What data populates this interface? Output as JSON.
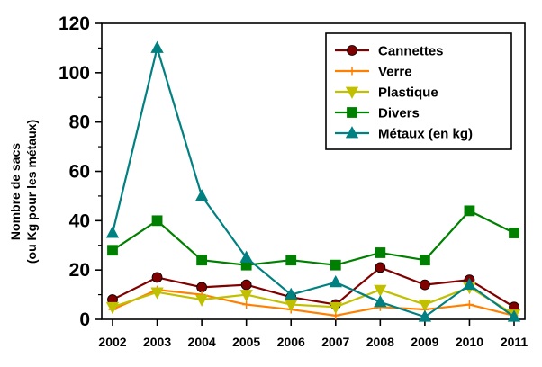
{
  "chart_data": {
    "type": "line",
    "title": "",
    "xlabel": "",
    "ylabel": [
      "Nombre de sacs",
      "(ou Kg pour les métaux)"
    ],
    "categories": [
      "2002",
      "2003",
      "2004",
      "2005",
      "2006",
      "2007",
      "2008",
      "2009",
      "2010",
      "2011"
    ],
    "ylim": [
      0,
      120
    ],
    "yticks": [
      0,
      20,
      40,
      60,
      80,
      100,
      120
    ],
    "grid": false,
    "legend_position": "top-right",
    "series": [
      {
        "name": "Cannettes",
        "color": "#800000",
        "marker": "circle",
        "values": [
          8,
          17,
          13,
          14,
          9,
          6,
          21,
          14,
          16,
          5
        ]
      },
      {
        "name": "Verre",
        "color": "#ff8000",
        "marker": "plus",
        "values": [
          4,
          12,
          10,
          6,
          4,
          1.5,
          5,
          4,
          6,
          1.5
        ]
      },
      {
        "name": "Plastique",
        "color": "#c0c000",
        "marker": "triangle-down",
        "values": [
          5,
          11,
          8,
          10,
          6,
          5,
          12,
          6,
          13,
          2
        ]
      },
      {
        "name": "Divers",
        "color": "#008000",
        "marker": "square",
        "values": [
          28,
          40,
          24,
          22,
          24,
          22,
          27,
          24,
          44,
          35
        ]
      },
      {
        "name": "Métaux (en kg)",
        "color": "#008080",
        "marker": "triangle-up",
        "values": [
          35,
          110,
          50,
          25,
          10,
          15,
          7,
          1,
          14,
          1
        ]
      }
    ]
  }
}
